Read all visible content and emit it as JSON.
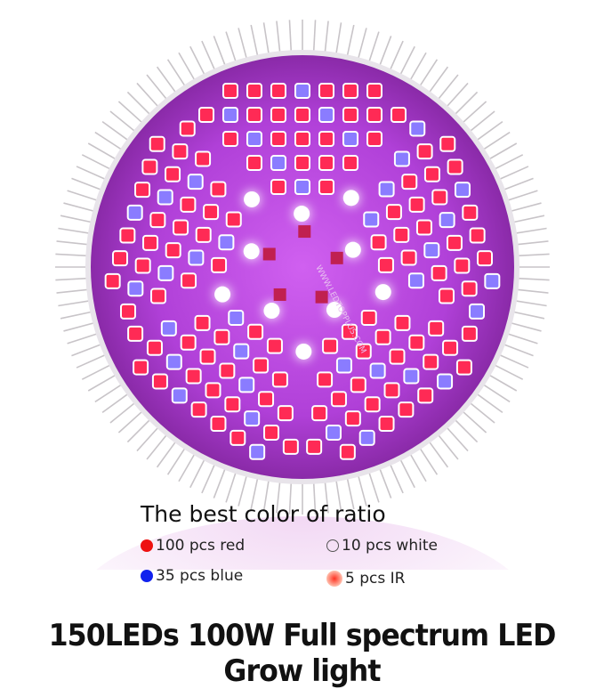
{
  "product_image": {
    "board_print": "WWW.LEDTOPPLUS.COM",
    "board_color": "#b040d8",
    "led_colors": {
      "red": "#ff2a55",
      "blue": "#8a7cff",
      "white": "#ffffff",
      "ir": "#ff4444"
    }
  },
  "ratio": {
    "title": "The best color of ratio",
    "items": [
      {
        "label": "100 pcs red",
        "color": "#ee1111",
        "count": 100
      },
      {
        "label": "35 pcs blue",
        "color": "#1122ee",
        "count": 35
      },
      {
        "label": "10  pcs white",
        "color": "#ffffff",
        "count": 10
      },
      {
        "label": "5  pcs IR",
        "color": "#ff5544",
        "count": 5
      }
    ]
  },
  "headline": "150LEDs 100W Full spectrum LED Grow light"
}
